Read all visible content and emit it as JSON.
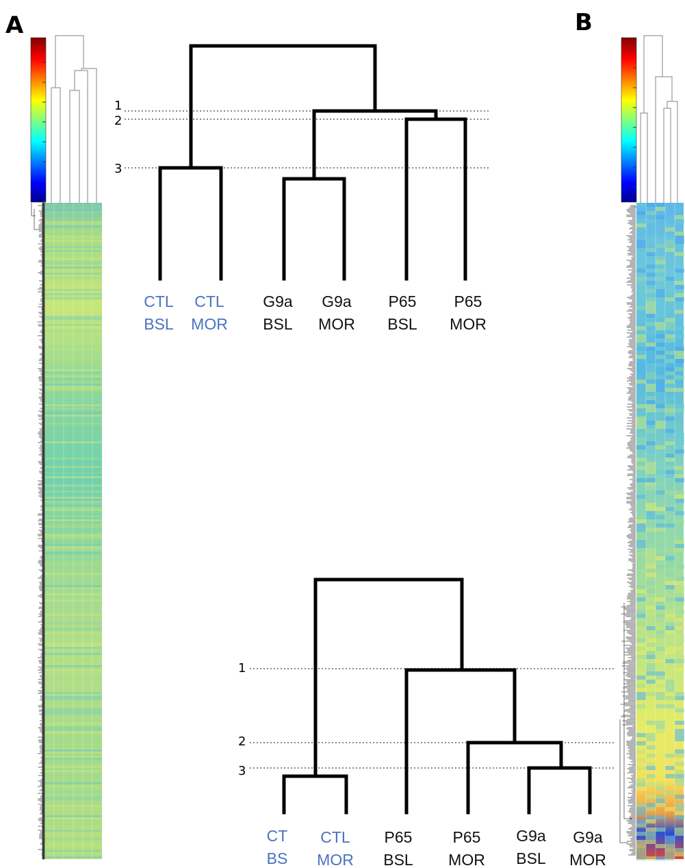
{
  "colors": {
    "control_label": "#4a72c0",
    "treatment_label": "#111111",
    "branch": "#000000",
    "cut_line": "#888888",
    "tiny_dendro": "#9a9a9a"
  },
  "panels": [
    {
      "letter": "A",
      "tree": {
        "cuts": [
          {
            "label": "1"
          },
          {
            "label": "2"
          },
          {
            "label": "3"
          }
        ],
        "leaves": [
          {
            "line1": "CTL",
            "line2": "BSL",
            "group": "control"
          },
          {
            "line1": "CTL",
            "line2": "MOR",
            "group": "control"
          },
          {
            "line1": "G9a",
            "line2": "BSL",
            "group": "treatment"
          },
          {
            "line1": "G9a",
            "line2": "MOR",
            "group": "treatment"
          },
          {
            "line1": "P65",
            "line2": "BSL",
            "group": "treatment"
          },
          {
            "line1": "P65",
            "line2": "MOR",
            "group": "treatment"
          }
        ]
      }
    },
    {
      "letter": "B",
      "tree": {
        "cuts": [
          {
            "label": "1"
          },
          {
            "label": "2"
          },
          {
            "label": "3"
          }
        ],
        "leaves": [
          {
            "line1": "CT",
            "line2": "BS",
            "group": "control"
          },
          {
            "line1": "CTL",
            "line2": "MOR",
            "group": "control"
          },
          {
            "line1": "P65",
            "line2": "BSL",
            "group": "treatment"
          },
          {
            "line1": "P65",
            "line2": "MOR",
            "group": "treatment"
          },
          {
            "line1": "G9a",
            "line2": "BSL",
            "group": "treatment"
          },
          {
            "line1": "G9a",
            "line2": "MOR",
            "group": "treatment"
          }
        ]
      }
    }
  ]
}
